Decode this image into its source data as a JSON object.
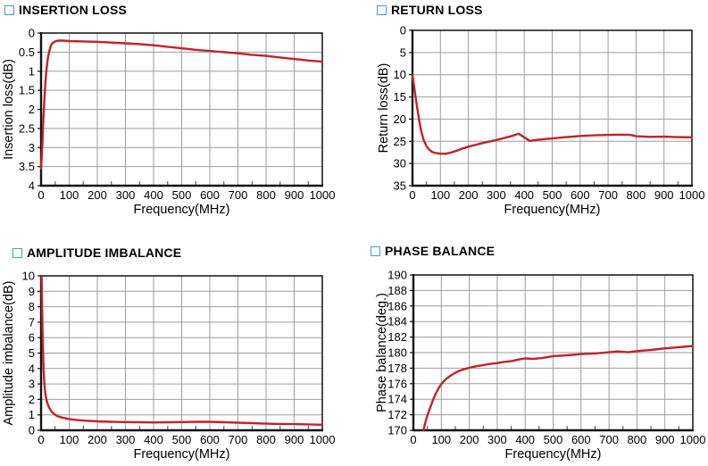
{
  "page": {
    "background": "#ffffff",
    "curve_color": "#c1232a",
    "grid_color": "#9e9e9e",
    "axis_color": "#111111",
    "minor_tick_color": "#444444",
    "title_square_color": "#4a9bd4",
    "frequency_unit": "MHz"
  },
  "chart_data": [
    {
      "type": "line",
      "title": "INSERTION LOSS",
      "xlabel": "Frequency(MHz)",
      "ylabel": "Insertion loss(dB)",
      "xlim": [
        0,
        1000
      ],
      "ylim": [
        0,
        4
      ],
      "y_inverted": true,
      "grid": true,
      "legend": "none",
      "x_ticks": [
        0,
        100,
        200,
        300,
        400,
        500,
        600,
        700,
        800,
        900,
        1000
      ],
      "y_ticks": [
        0,
        0.5,
        1,
        1.5,
        2,
        2.5,
        3,
        3.5,
        4
      ],
      "x_minor_step": 50,
      "series": [
        {
          "name": "Insertion loss",
          "color": "#c1232a",
          "points": [
            [
              0,
              3.55
            ],
            [
              4,
              3.0
            ],
            [
              8,
              2.3
            ],
            [
              12,
              1.7
            ],
            [
              16,
              1.25
            ],
            [
              20,
              0.9
            ],
            [
              25,
              0.62
            ],
            [
              30,
              0.45
            ],
            [
              35,
              0.33
            ],
            [
              40,
              0.27
            ],
            [
              50,
              0.22
            ],
            [
              60,
              0.2
            ],
            [
              80,
              0.2
            ],
            [
              100,
              0.21
            ],
            [
              150,
              0.22
            ],
            [
              200,
              0.23
            ],
            [
              250,
              0.25
            ],
            [
              300,
              0.27
            ],
            [
              350,
              0.29
            ],
            [
              400,
              0.32
            ],
            [
              450,
              0.36
            ],
            [
              500,
              0.4
            ],
            [
              550,
              0.44
            ],
            [
              600,
              0.47
            ],
            [
              650,
              0.5
            ],
            [
              700,
              0.53
            ],
            [
              750,
              0.57
            ],
            [
              800,
              0.6
            ],
            [
              850,
              0.64
            ],
            [
              900,
              0.68
            ],
            [
              950,
              0.72
            ],
            [
              1000,
              0.75
            ]
          ]
        }
      ]
    },
    {
      "type": "line",
      "title": "RETURN LOSS",
      "xlabel": "Frequency(MHz)",
      "ylabel": "Return loss(dB)",
      "xlim": [
        0,
        1000
      ],
      "ylim": [
        0,
        35
      ],
      "y_inverted": true,
      "grid": true,
      "legend": "none",
      "x_ticks": [
        0,
        100,
        200,
        300,
        400,
        500,
        600,
        700,
        800,
        900,
        1000
      ],
      "y_ticks": [
        0,
        5,
        10,
        15,
        20,
        25,
        30,
        35
      ],
      "x_minor_step": 50,
      "series": [
        {
          "name": "Return loss",
          "color": "#c1232a",
          "points": [
            [
              0,
              10
            ],
            [
              10,
              14.5
            ],
            [
              20,
              18.8
            ],
            [
              30,
              22.4
            ],
            [
              40,
              24.7
            ],
            [
              50,
              26.1
            ],
            [
              60,
              26.9
            ],
            [
              70,
              27.4
            ],
            [
              80,
              27.6
            ],
            [
              100,
              27.8
            ],
            [
              120,
              27.8
            ],
            [
              140,
              27.5
            ],
            [
              160,
              27.1
            ],
            [
              180,
              26.6
            ],
            [
              200,
              26.2
            ],
            [
              250,
              25.4
            ],
            [
              300,
              24.7
            ],
            [
              350,
              23.9
            ],
            [
              380,
              23.3
            ],
            [
              420,
              24.9
            ],
            [
              450,
              24.65
            ],
            [
              500,
              24.35
            ],
            [
              550,
              24.05
            ],
            [
              600,
              23.8
            ],
            [
              650,
              23.65
            ],
            [
              700,
              23.55
            ],
            [
              750,
              23.5
            ],
            [
              780,
              23.55
            ],
            [
              800,
              23.85
            ],
            [
              850,
              24.0
            ],
            [
              900,
              23.95
            ],
            [
              950,
              24.05
            ],
            [
              1000,
              24.1
            ]
          ]
        }
      ]
    },
    {
      "type": "line",
      "title": "AMPLITUDE IMBALANCE",
      "xlabel": "Frequency(MHz)",
      "ylabel": "Amplitude imbalance(dB)",
      "xlim": [
        0,
        1000
      ],
      "ylim": [
        0,
        10
      ],
      "y_inverted": false,
      "grid": true,
      "legend": "none",
      "x_ticks": [
        0,
        100,
        200,
        300,
        400,
        500,
        600,
        700,
        800,
        900,
        1000
      ],
      "y_ticks": [
        0,
        1,
        2,
        3,
        4,
        5,
        6,
        7,
        8,
        9,
        10
      ],
      "x_minor_step": 50,
      "series": [
        {
          "name": "Amplitude imbalance",
          "color": "#c1232a",
          "points": [
            [
              2,
              10
            ],
            [
              3,
              8.8
            ],
            [
              4,
              7.6
            ],
            [
              5,
              6.6
            ],
            [
              6,
              5.8
            ],
            [
              8,
              4.6
            ],
            [
              10,
              3.6
            ],
            [
              12,
              2.95
            ],
            [
              15,
              2.4
            ],
            [
              20,
              1.9
            ],
            [
              25,
              1.62
            ],
            [
              30,
              1.42
            ],
            [
              40,
              1.15
            ],
            [
              50,
              1.0
            ],
            [
              60,
              0.9
            ],
            [
              75,
              0.82
            ],
            [
              100,
              0.73
            ],
            [
              125,
              0.67
            ],
            [
              150,
              0.63
            ],
            [
              200,
              0.58
            ],
            [
              250,
              0.55
            ],
            [
              300,
              0.53
            ],
            [
              350,
              0.52
            ],
            [
              400,
              0.51
            ],
            [
              450,
              0.52
            ],
            [
              500,
              0.53
            ],
            [
              550,
              0.55
            ],
            [
              600,
              0.55
            ],
            [
              650,
              0.52
            ],
            [
              700,
              0.49
            ],
            [
              750,
              0.46
            ],
            [
              800,
              0.43
            ],
            [
              850,
              0.41
            ],
            [
              900,
              0.4
            ],
            [
              950,
              0.38
            ],
            [
              1000,
              0.36
            ]
          ]
        }
      ]
    },
    {
      "type": "line",
      "title": "PHASE BALANCE",
      "xlabel": "Frequency(MHz)",
      "ylabel": "Phase balance(deg.)",
      "xlim": [
        0,
        1000
      ],
      "ylim": [
        170,
        190
      ],
      "y_inverted": false,
      "grid": true,
      "legend": "none",
      "x_ticks": [
        0,
        100,
        200,
        300,
        400,
        500,
        600,
        700,
        800,
        900,
        1000
      ],
      "y_ticks": [
        170,
        172,
        174,
        176,
        178,
        180,
        182,
        184,
        186,
        188,
        190
      ],
      "x_minor_step": 50,
      "series": [
        {
          "name": "Phase balance",
          "color": "#c1232a",
          "points": [
            [
              36,
              170
            ],
            [
              40,
              170.6
            ],
            [
              45,
              171.3
            ],
            [
              50,
              171.9
            ],
            [
              55,
              172.4
            ],
            [
              60,
              172.9
            ],
            [
              70,
              173.9
            ],
            [
              80,
              174.7
            ],
            [
              90,
              175.4
            ],
            [
              100,
              175.95
            ],
            [
              110,
              176.35
            ],
            [
              120,
              176.7
            ],
            [
              130,
              176.95
            ],
            [
              140,
              177.2
            ],
            [
              160,
              177.6
            ],
            [
              180,
              177.85
            ],
            [
              200,
              178.05
            ],
            [
              225,
              178.25
            ],
            [
              250,
              178.4
            ],
            [
              275,
              178.55
            ],
            [
              300,
              178.65
            ],
            [
              325,
              178.8
            ],
            [
              350,
              178.9
            ],
            [
              375,
              179.1
            ],
            [
              400,
              179.25
            ],
            [
              430,
              179.2
            ],
            [
              460,
              179.3
            ],
            [
              500,
              179.55
            ],
            [
              550,
              179.65
            ],
            [
              600,
              179.8
            ],
            [
              650,
              179.9
            ],
            [
              700,
              180.05
            ],
            [
              730,
              180.15
            ],
            [
              770,
              180.05
            ],
            [
              800,
              180.2
            ],
            [
              850,
              180.35
            ],
            [
              900,
              180.55
            ],
            [
              950,
              180.7
            ],
            [
              1000,
              180.85
            ]
          ]
        }
      ]
    }
  ]
}
